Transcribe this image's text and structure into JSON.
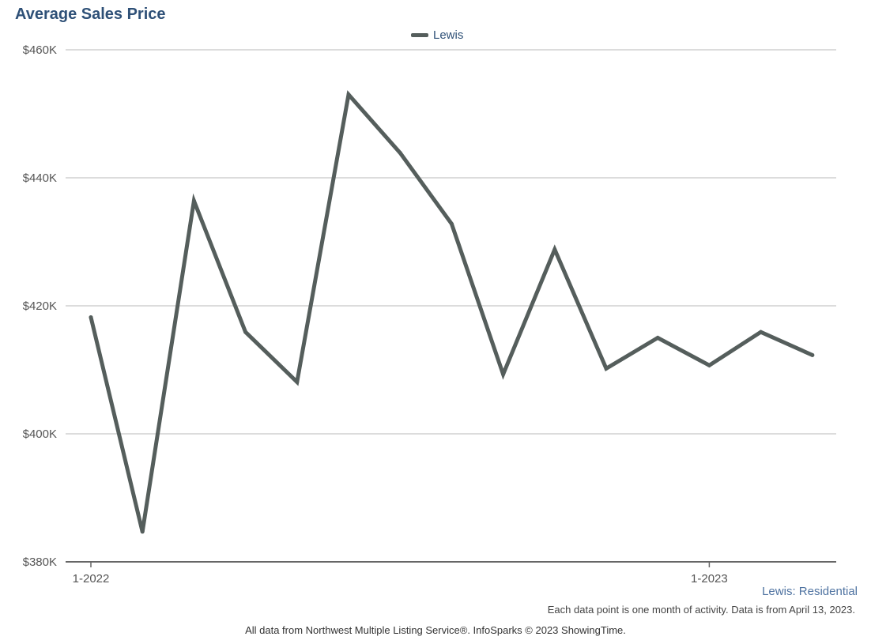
{
  "chart_data": {
    "type": "line",
    "title": "Average Sales Price",
    "series": [
      {
        "name": "Lewis",
        "color": "#555e5c",
        "values": [
          418200,
          384700,
          436400,
          415900,
          408100,
          453000,
          443900,
          432800,
          409300,
          428800,
          410200,
          415000,
          410700,
          415900,
          412300
        ]
      }
    ],
    "x": [
      "1-2022",
      "2-2022",
      "3-2022",
      "4-2022",
      "5-2022",
      "6-2022",
      "7-2022",
      "8-2022",
      "9-2022",
      "10-2022",
      "11-2022",
      "12-2022",
      "1-2023",
      "2-2023",
      "3-2023"
    ],
    "x_tick_labels": [
      "1-2022",
      "1-2023"
    ],
    "y_tick_labels": [
      "$460K",
      "$440K",
      "$420K",
      "$400K",
      "$380K"
    ],
    "y_ticks": [
      460000,
      440000,
      420000,
      400000,
      380000
    ],
    "ylim": [
      380000,
      460000
    ],
    "grid": true,
    "legend": "top-center"
  },
  "subtitle": "Lewis: Residential",
  "note": "Each data point is one month of activity. Data is from April 13, 2023.",
  "source": "All data from Northwest Multiple Listing Service®. InfoSparks © 2023 ShowingTime."
}
